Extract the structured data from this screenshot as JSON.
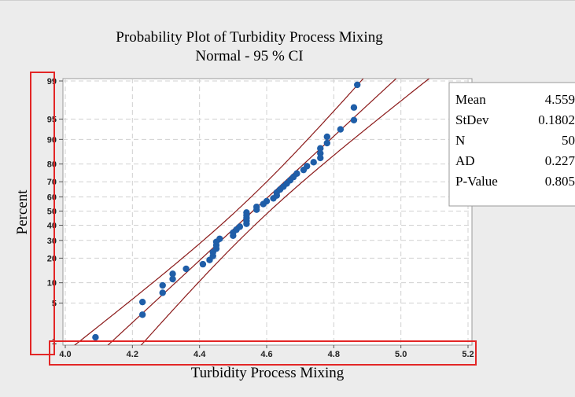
{
  "chart_data": {
    "type": "scatter",
    "title": "Probability Plot of Turbidity Process Mixing",
    "subtitle": "Normal - 95 % CI",
    "xlabel": "Turbidity Process Mixing",
    "ylabel": "Percent",
    "xlim": [
      4.0,
      5.2
    ],
    "x_ticks": [
      "4.0",
      "4.2",
      "4.4",
      "4.6",
      "4.8",
      "5.0",
      "5.2"
    ],
    "y_ticks": [
      "1",
      "5",
      "10",
      "20",
      "30",
      "40",
      "50",
      "60",
      "70",
      "80",
      "90",
      "95",
      "99"
    ],
    "grid": true,
    "points": [
      [
        4.09,
        1.2
      ],
      [
        4.23,
        3.2
      ],
      [
        4.23,
        5.2
      ],
      [
        4.29,
        7.2
      ],
      [
        4.29,
        9.2
      ],
      [
        4.32,
        11.2
      ],
      [
        4.32,
        13.1
      ],
      [
        4.36,
        15.1
      ],
      [
        4.41,
        17.1
      ],
      [
        4.43,
        19.1
      ],
      [
        4.44,
        21.1
      ],
      [
        4.44,
        23.1
      ],
      [
        4.45,
        25.1
      ],
      [
        4.45,
        27.1
      ],
      [
        4.45,
        29.1
      ],
      [
        4.46,
        31.0
      ],
      [
        4.5,
        33.0
      ],
      [
        4.5,
        35.0
      ],
      [
        4.51,
        37.0
      ],
      [
        4.52,
        39.0
      ],
      [
        4.54,
        41.0
      ],
      [
        4.54,
        43.0
      ],
      [
        4.54,
        45.0
      ],
      [
        4.54,
        47.0
      ],
      [
        4.54,
        49.0
      ],
      [
        4.57,
        51.0
      ],
      [
        4.57,
        53.0
      ],
      [
        4.59,
        55.0
      ],
      [
        4.6,
        57.0
      ],
      [
        4.62,
        59.0
      ],
      [
        4.63,
        61.0
      ],
      [
        4.63,
        63.0
      ],
      [
        4.64,
        65.0
      ],
      [
        4.65,
        66.9
      ],
      [
        4.66,
        68.9
      ],
      [
        4.67,
        70.9
      ],
      [
        4.68,
        72.9
      ],
      [
        4.69,
        74.9
      ],
      [
        4.71,
        76.9
      ],
      [
        4.72,
        78.9
      ],
      [
        4.74,
        80.9
      ],
      [
        4.76,
        82.9
      ],
      [
        4.76,
        84.9
      ],
      [
        4.76,
        86.9
      ],
      [
        4.78,
        88.8
      ],
      [
        4.78,
        90.8
      ],
      [
        4.82,
        92.8
      ],
      [
        4.86,
        94.8
      ],
      [
        4.86,
        96.8
      ],
      [
        4.87,
        98.8
      ]
    ],
    "fit": {
      "mean": 4.559,
      "stdev": 0.1802,
      "n": 50
    },
    "stats": [
      {
        "label": "Mean",
        "value": "4.559"
      },
      {
        "label": "StDev",
        "value": "0.1802"
      },
      {
        "label": "N",
        "value": "50"
      },
      {
        "label": "AD",
        "value": "0.227"
      },
      {
        "label": "P-Value",
        "value": "0.805"
      }
    ],
    "colors": {
      "points": "#1f5ea8",
      "lines": "#8b1a1a",
      "highlight": "#e32626",
      "outer_background": "#ececec",
      "plot_background": "#ffffff",
      "grid": "#d0d0d0"
    }
  }
}
